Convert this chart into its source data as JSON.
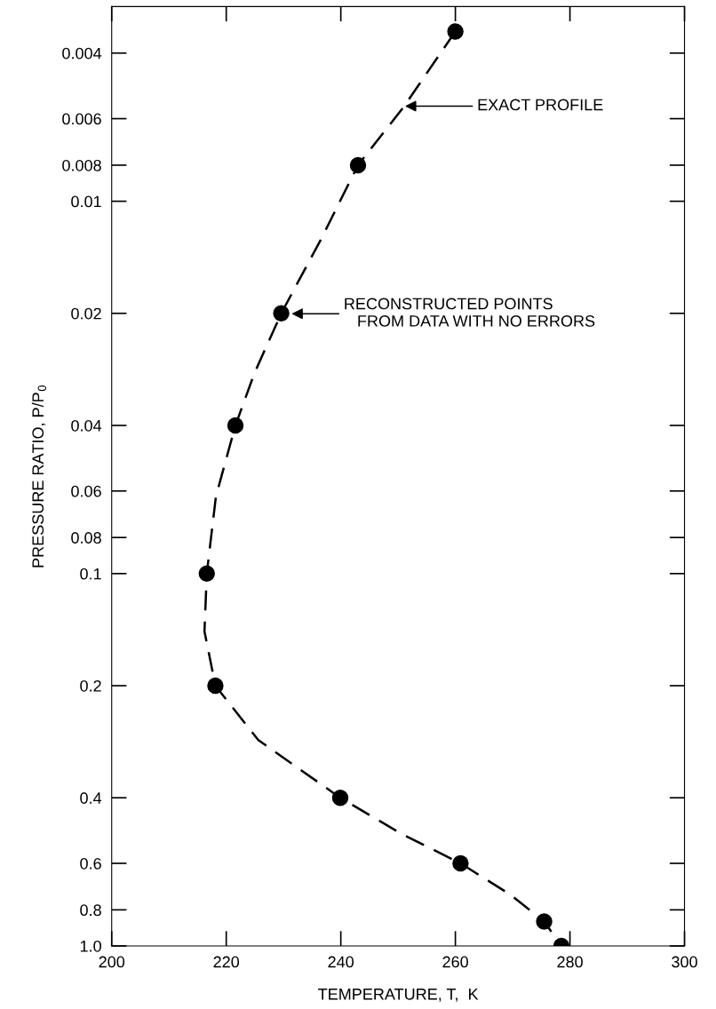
{
  "chart_data": {
    "type": "scatter",
    "xlabel": "TEMPERATURE, T,  K",
    "ylabel": "PRESSURE RATIO, P/P$_{0}$",
    "series": [
      {
        "type": "line",
        "color": "#000000",
        "line_style": "dashed",
        "marker": "none",
        "x": [
          260,
          250.9,
          243,
          236.6,
          229.6,
          224.9,
          221.6,
          218.2,
          216.6,
          216.2,
          218.1,
          225.6,
          239.9,
          250.6,
          260.9,
          269.7,
          275.5,
          278.5
        ],
        "values": [
          0.0035,
          0.0056,
          0.008,
          0.0126,
          0.02,
          0.029,
          0.04,
          0.062,
          0.1,
          0.143,
          0.2,
          0.28,
          0.4,
          0.5,
          0.6,
          0.73,
          0.86,
          1.0
        ]
      },
      {
        "color": "#000000",
        "marker": "circle",
        "x": [
          260,
          243,
          229.6,
          221.6,
          216.6,
          218.1,
          239.9,
          260.9,
          275.5,
          278.5
        ],
        "values": [
          0.0035,
          0.008,
          0.02,
          0.04,
          0.1,
          0.2,
          0.4,
          0.6,
          0.86,
          1.0
        ]
      }
    ],
    "annotations": [
      "EXACT PROFILE",
      "RECONSTRUCTED POINTS\n   FROM DATA WITH NO ERRORS"
    ],
    "log": "y",
    "xlim": [
      200,
      300
    ],
    "ylim": [
      1.0,
      0.003
    ],
    "xticks": [
      200,
      220,
      240,
      260,
      280,
      300
    ],
    "yticks": [
      0.004,
      0.006,
      0.008,
      0.01,
      0.02,
      0.04,
      0.06,
      0.08,
      0.1,
      0.2,
      0.4,
      0.6,
      0.8,
      {
        "value": 1.0,
        "label": "1.0"
      }
    ],
    "grid": false,
    "legend": false
  }
}
